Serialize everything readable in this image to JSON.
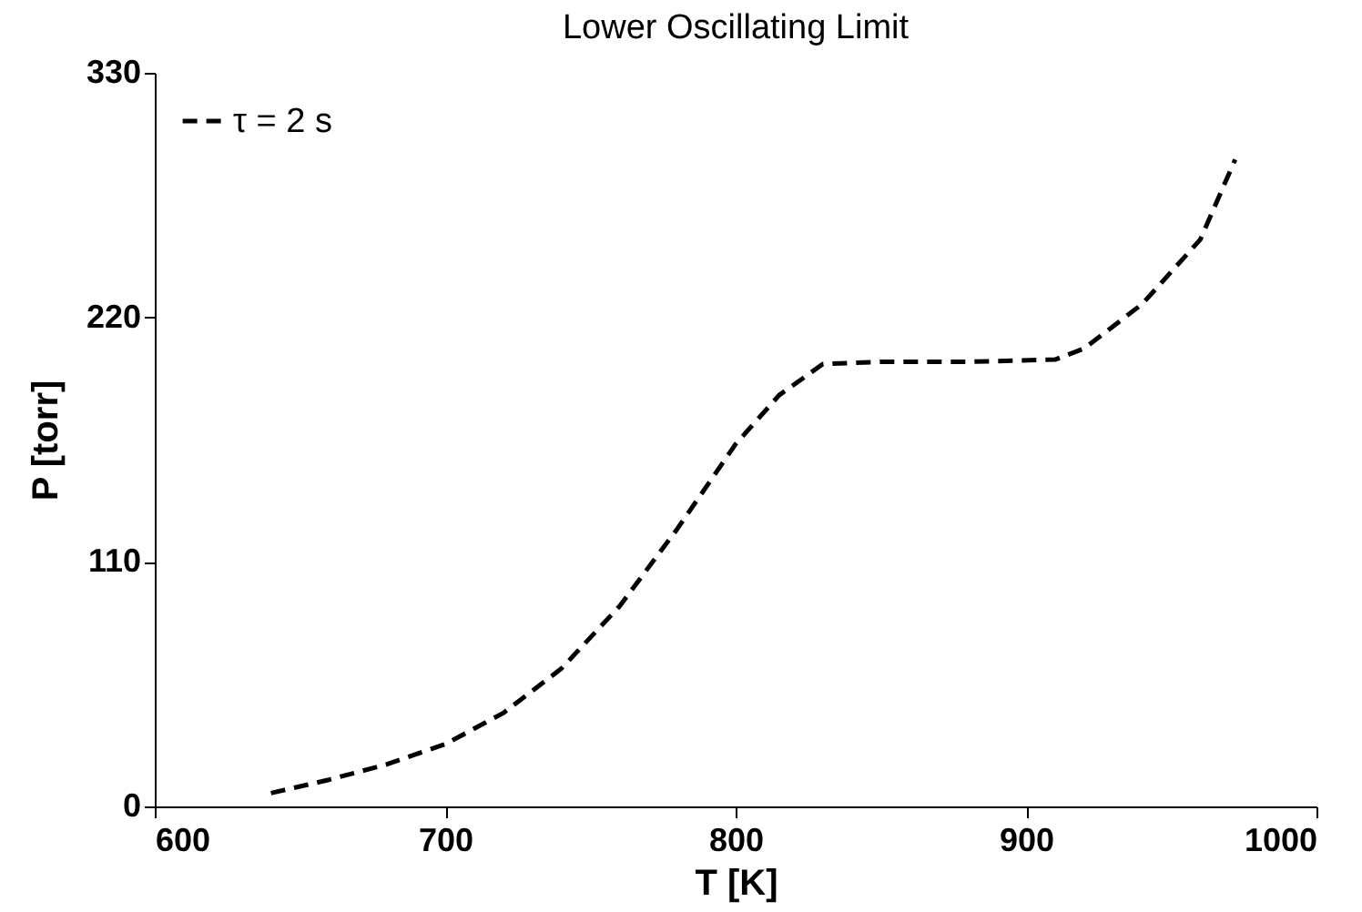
{
  "chart_data": {
    "type": "line",
    "title": "Lower Oscillating Limit",
    "xlabel": "T [K]",
    "ylabel": "P [torr]",
    "x": [
      640,
      660,
      680,
      700,
      720,
      740,
      760,
      780,
      800,
      815,
      830,
      850,
      880,
      910,
      920,
      940,
      960,
      972
    ],
    "series": [
      {
        "name": "τ = 2 s",
        "color": "#000000",
        "line_style": "dashed",
        "values": [
          6,
          12,
          19,
          28,
          42,
          62,
          90,
          125,
          163,
          185,
          199,
          200,
          200,
          201,
          206,
          226,
          255,
          291
        ]
      }
    ],
    "xlim": [
      600,
      1000
    ],
    "xticks": [
      600,
      700,
      800,
      900,
      1000
    ],
    "ylim": [
      0,
      330
    ],
    "yticks": [
      0,
      110,
      220,
      330
    ],
    "legend": "top left",
    "marker": "none",
    "grid": false
  }
}
